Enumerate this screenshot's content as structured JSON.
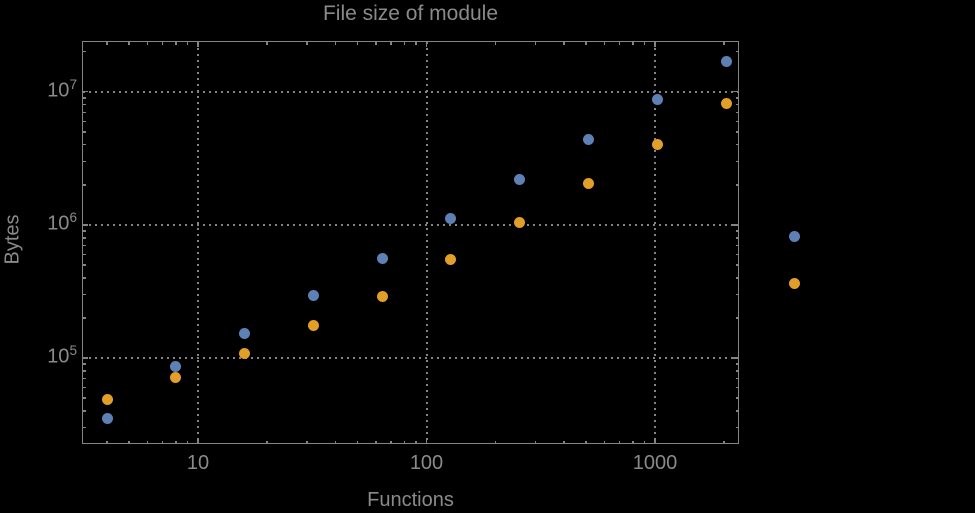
{
  "title": "File size of module",
  "x_axis": {
    "label": "Functions",
    "tick_labels": [
      "10",
      "100",
      "1000"
    ],
    "tick_values": [
      10,
      100,
      1000
    ]
  },
  "y_axis": {
    "label": "Bytes",
    "tick_labels": [
      {
        "base": "10",
        "exp": "5",
        "value": 100000
      },
      {
        "base": "10",
        "exp": "6",
        "value": 1000000
      },
      {
        "base": "10",
        "exp": "7",
        "value": 10000000
      }
    ]
  },
  "colors": {
    "background": "#000000",
    "frame": "#848484",
    "grid": "#848484",
    "text": "#8a8a8a",
    "series_blue": "#5E81B5",
    "series_orange": "#E19E28"
  },
  "chart_data": {
    "type": "scatter",
    "title": "File size of module",
    "xlabel": "Functions",
    "ylabel": "Bytes",
    "x_scale": "log",
    "y_scale": "log",
    "grid": "dotted-at-decades",
    "legend": "none",
    "x": [
      4,
      8,
      16,
      32,
      64,
      128,
      256,
      512,
      1024,
      2048,
      4096
    ],
    "series": [
      {
        "name": "series-blue",
        "color": "#5E81B5",
        "values": [
          35000,
          87000,
          153000,
          296000,
          560000,
          1120000,
          2200000,
          4400000,
          8700000,
          17000000,
          820000
        ]
      },
      {
        "name": "series-orange",
        "color": "#E19E28",
        "values": [
          49000,
          72000,
          109000,
          176000,
          291000,
          552000,
          1050000,
          2060000,
          4040000,
          8200000,
          364000
        ]
      }
    ],
    "x_gridlines": [
      10,
      100,
      1000
    ],
    "y_gridlines": [
      100000,
      1000000,
      10000000
    ],
    "x_range_log10": [
      0.4923,
      3.3676
    ],
    "y_range_log10": [
      4.351,
      7.381
    ]
  }
}
